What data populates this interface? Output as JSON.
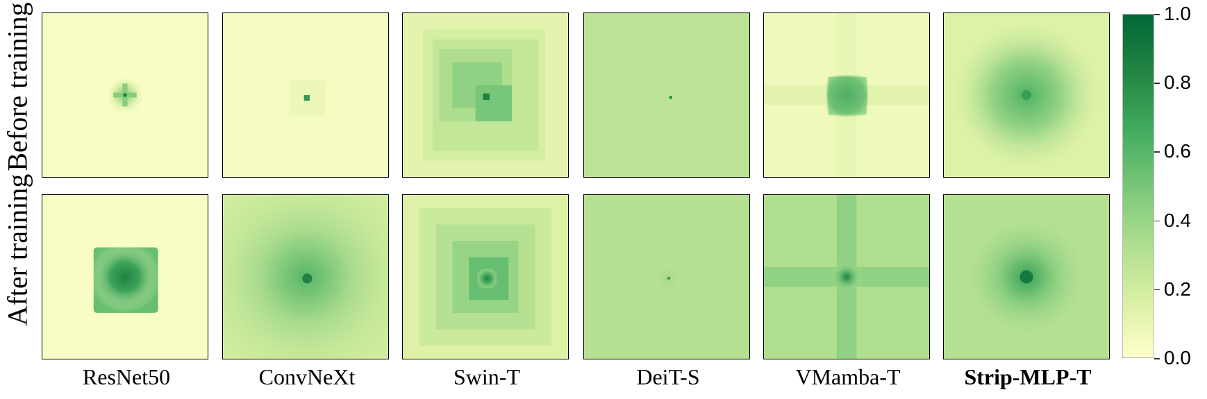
{
  "chart_data": {
    "type": "heatmap",
    "colormap": [
      "#ffffcc",
      "#d9f0a3",
      "#addd8e",
      "#78c679",
      "#41ab5d",
      "#238443",
      "#006837"
    ],
    "colorbar": {
      "ticks": [
        "0.0",
        "0.2",
        "0.4",
        "0.6",
        "0.8",
        "1.0"
      ],
      "range": [
        0,
        1
      ]
    },
    "rows": [
      "Before training",
      "After training"
    ],
    "columns": [
      {
        "label": "ResNet50",
        "bold": false
      },
      {
        "label": "ConvNeXt",
        "bold": false
      },
      {
        "label": "Swin-T",
        "bold": false
      },
      {
        "label": "DeiT-S",
        "bold": false
      },
      {
        "label": "VMamba-T",
        "bold": false
      },
      {
        "label": "Strip-MLP-T",
        "bold": true
      }
    ],
    "panels": [
      {
        "model": "ResNet50",
        "stage": "Before training",
        "background": 0.03,
        "peak": 0.9,
        "spread": "small centered cross"
      },
      {
        "model": "ConvNeXt",
        "stage": "Before training",
        "background": 0.04,
        "peak": 0.75,
        "spread": "tiny centered square"
      },
      {
        "model": "Swin-T",
        "stage": "Before training",
        "background": 0.12,
        "peak": 0.85,
        "spread": "stepped nested windows"
      },
      {
        "model": "DeiT-S",
        "stage": "Before training",
        "background": 0.28,
        "peak": 0.8,
        "spread": "single center point, uniform field"
      },
      {
        "model": "VMamba-T",
        "stage": "Before training",
        "background": 0.07,
        "peak": 0.75,
        "spread": "square block with faint cross"
      },
      {
        "model": "Strip-MLP-T",
        "stage": "Before training",
        "background": 0.15,
        "peak": 0.72,
        "spread": "broad centered blob"
      },
      {
        "model": "ResNet50",
        "stage": "After training",
        "background": 0.03,
        "peak": 0.85,
        "spread": "medium square block"
      },
      {
        "model": "ConvNeXt",
        "stage": "After training",
        "background": 0.2,
        "peak": 0.85,
        "spread": "broad radial"
      },
      {
        "model": "Swin-T",
        "stage": "After training",
        "background": 0.15,
        "peak": 0.85,
        "spread": "stepped windows"
      },
      {
        "model": "DeiT-S",
        "stage": "After training",
        "background": 0.3,
        "peak": 0.75,
        "spread": "single center point, uniform field"
      },
      {
        "model": "VMamba-T",
        "stage": "After training",
        "background": 0.32,
        "peak": 0.85,
        "spread": "cross with center peak"
      },
      {
        "model": "Strip-MLP-T",
        "stage": "After training",
        "background": 0.3,
        "peak": 0.9,
        "spread": "broad centered blob"
      }
    ]
  }
}
